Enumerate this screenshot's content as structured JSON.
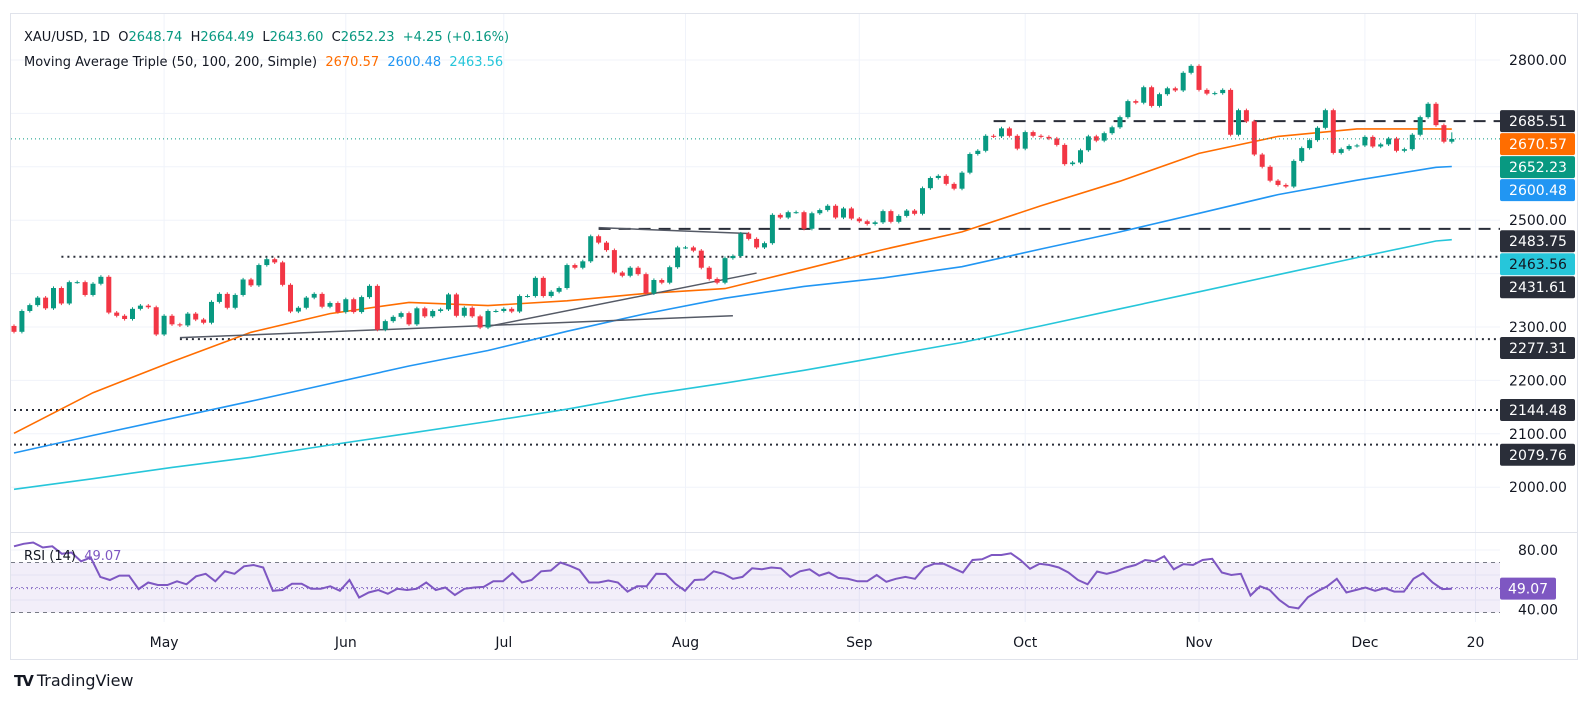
{
  "header": {
    "symbol": "XAU/USD, 1D",
    "o_label": "O",
    "o": "2648.74",
    "h_label": "H",
    "h": "2664.49",
    "l_label": "L",
    "l": "2643.60",
    "c_label": "C",
    "c": "2652.23",
    "change": "+4.25 (+0.16%)"
  },
  "ma_legend": {
    "title": "Moving Average Triple (50, 100, 200, Simple)",
    "ma50": "2670.57",
    "ma100": "2600.48",
    "ma200": "2463.56"
  },
  "rsi_legend": {
    "title": "RSI (14)",
    "value": "49.07"
  },
  "colors": {
    "up": "#089981",
    "down": "#f23645",
    "ma50": "#ff6d00",
    "ma100": "#2196f3",
    "ma200": "#26c6da",
    "rsi": "#7e57c2",
    "badge_dark": "#2a2e39"
  },
  "price_axis": {
    "ticks": [
      {
        "value": 2800,
        "label": "2800.00"
      },
      {
        "value": 2500,
        "label": "2500.00"
      },
      {
        "value": 2300,
        "label": "2300.00"
      },
      {
        "value": 2200,
        "label": "2200.00"
      },
      {
        "value": 2100,
        "label": "2100.00"
      },
      {
        "value": 2000,
        "label": "2000.00"
      }
    ],
    "badges": [
      {
        "value": 2685.51,
        "label": "2685.51",
        "bg": "#2a2e39",
        "fg": "#ffffff"
      },
      {
        "value": 2670.57,
        "label": "2670.57",
        "bg": "#ff6d00",
        "fg": "#ffffff"
      },
      {
        "value": 2652.23,
        "label": "2652.23",
        "bg": "#089981",
        "fg": "#ffffff"
      },
      {
        "value": 2600.48,
        "label": "2600.48",
        "bg": "#2196f3",
        "fg": "#ffffff"
      },
      {
        "value": 2483.75,
        "label": "2483.75",
        "bg": "#2a2e39",
        "fg": "#ffffff"
      },
      {
        "value": 2463.56,
        "label": "2463.56",
        "bg": "#26c6da",
        "fg": "#131722"
      },
      {
        "value": 2431.61,
        "label": "2431.61",
        "bg": "#2a2e39",
        "fg": "#ffffff"
      },
      {
        "value": 2277.31,
        "label": "2277.31",
        "bg": "#2a2e39",
        "fg": "#ffffff"
      },
      {
        "value": 2144.48,
        "label": "2144.48",
        "bg": "#2a2e39",
        "fg": "#ffffff"
      },
      {
        "value": 2079.76,
        "label": "2079.76",
        "bg": "#2a2e39",
        "fg": "#ffffff"
      }
    ]
  },
  "rsi_axis": {
    "ticks": [
      {
        "value": 80,
        "label": "80.00"
      },
      {
        "value": 40,
        "label": "40.00"
      }
    ],
    "badge": {
      "value": 49.07,
      "label": "49.07"
    }
  },
  "time_axis": [
    {
      "label": "May",
      "bar": 19
    },
    {
      "label": "Jun",
      "bar": 42
    },
    {
      "label": "Jul",
      "bar": 62
    },
    {
      "label": "Aug",
      "bar": 85
    },
    {
      "label": "Sep",
      "bar": 107
    },
    {
      "label": "Oct",
      "bar": 128
    },
    {
      "label": "Nov",
      "bar": 150
    },
    {
      "label": "Dec",
      "bar": 171
    },
    {
      "label": "20",
      "bar": 185
    }
  ],
  "logo": "TradingView",
  "chart_data": {
    "type": "candlestick",
    "scale": "linear",
    "ylim": [
      1930,
      2810
    ],
    "grid": true,
    "first_open": 2302,
    "last_high": 2664.49,
    "last_low": 2643.6,
    "closes": [
      2291,
      2330,
      2341,
      2355,
      2335,
      2373,
      2344,
      2384,
      2384,
      2360,
      2381,
      2394,
      2327,
      2321,
      2315,
      2334,
      2340,
      2337,
      2286,
      2321,
      2305,
      2303,
      2325,
      2314,
      2308,
      2347,
      2362,
      2336,
      2360,
      2389,
      2378,
      2416,
      2427,
      2421,
      2379,
      2329,
      2336,
      2355,
      2362,
      2338,
      2345,
      2328,
      2352,
      2328,
      2356,
      2377,
      2295,
      2311,
      2319,
      2326,
      2305,
      2335,
      2320,
      2330,
      2333,
      2361,
      2321,
      2336,
      2320,
      2299,
      2330,
      2330,
      2334,
      2329,
      2358,
      2358,
      2392,
      2358,
      2366,
      2373,
      2416,
      2411,
      2423,
      2470,
      2458,
      2444,
      2402,
      2396,
      2411,
      2399,
      2363,
      2388,
      2383,
      2412,
      2449,
      2449,
      2443,
      2411,
      2390,
      2383,
      2429,
      2433,
      2475,
      2465,
      2449,
      2457,
      2510,
      2505,
      2515,
      2515,
      2484,
      2513,
      2519,
      2527,
      2505,
      2522,
      2503,
      2498,
      2493,
      2496,
      2517,
      2497,
      2508,
      2518,
      2512,
      2560,
      2579,
      2583,
      2568,
      2559,
      2589,
      2624,
      2630,
      2658,
      2657,
      2672,
      2658,
      2634,
      2665,
      2658,
      2656,
      2653,
      2641,
      2605,
      2608,
      2631,
      2657,
      2649,
      2663,
      2674,
      2693,
      2723,
      2720,
      2749,
      2714,
      2736,
      2747,
      2743,
      2776,
      2789,
      2744,
      2737,
      2738,
      2744,
      2660,
      2706,
      2685,
      2623,
      2600,
      2574,
      2566,
      2563,
      2611,
      2635,
      2650,
      2673,
      2706,
      2626,
      2633,
      2639,
      2640,
      2656,
      2638,
      2642,
      2653,
      2630,
      2633,
      2660,
      2693,
      2718,
      2678,
      2647,
      2652.23
    ],
    "moving_averages": {
      "sample_bars": [
        0,
        10,
        20,
        30,
        40,
        50,
        60,
        70,
        80,
        90,
        100,
        110,
        120,
        130,
        140,
        150,
        160,
        170,
        180,
        182
      ],
      "ma50": [
        2101,
        2177,
        2235,
        2290,
        2325,
        2346,
        2340,
        2349,
        2363,
        2372,
        2408,
        2445,
        2478,
        2527,
        2573,
        2625,
        2657,
        2671,
        2671,
        2670.57
      ],
      "ma100": [
        2064,
        2097,
        2129,
        2161,
        2194,
        2227,
        2256,
        2292,
        2325,
        2354,
        2376,
        2392,
        2413,
        2446,
        2478,
        2513,
        2548,
        2575,
        2599,
        2600.48
      ],
      "ma200": [
        1996,
        2016,
        2037,
        2056,
        2079,
        2101,
        2123,
        2146,
        2173,
        2195,
        2219,
        2245,
        2271,
        2302,
        2334,
        2366,
        2398,
        2430,
        2461,
        2463.56
      ]
    },
    "levels": [
      {
        "price": 2685.51,
        "style": "dashed",
        "from_bar": 124
      },
      {
        "price": 2483.75,
        "style": "dashed",
        "from_bar": 74
      },
      {
        "price": 2431.61,
        "style": "dotted",
        "from_bar": 6
      },
      {
        "price": 2277.31,
        "style": "dotted",
        "from_bar": 21
      },
      {
        "price": 2144.48,
        "style": "dotted",
        "from_bar": 0
      },
      {
        "price": 2079.76,
        "style": "dotted",
        "from_bar": 0
      }
    ],
    "trendlines": [
      {
        "from": [
          21,
          2280
        ],
        "to": [
          91,
          2321
        ]
      },
      {
        "from": [
          60,
          2301
        ],
        "to": [
          94,
          2401
        ]
      },
      {
        "from": [
          74,
          2486
        ],
        "to": [
          93,
          2475
        ]
      }
    ],
    "rsi": {
      "period": 14,
      "upper": 70,
      "middle": 50,
      "lower": 30,
      "values": [
        83,
        85,
        86,
        82,
        83,
        77,
        78,
        71,
        74,
        58.5,
        56,
        59.5,
        59.5,
        48.7,
        54,
        52,
        52,
        55,
        52.6,
        59,
        61,
        55,
        63,
        61,
        67,
        68,
        66,
        47.4,
        48,
        53,
        53,
        49,
        49,
        51,
        47.4,
        56,
        42,
        46,
        48,
        45,
        49,
        48,
        49,
        54,
        48,
        50,
        44,
        49,
        50,
        50.5,
        55,
        55,
        61.5,
        54,
        56,
        63,
        63.6,
        70,
        67.4,
        64,
        54,
        54,
        55.6,
        54,
        46.7,
        51,
        51,
        61,
        60.8,
        53,
        47.4,
        56,
        56.4,
        63,
        61,
        57,
        58.5,
        65.4,
        64.6,
        66,
        65.4,
        58.5,
        63,
        64.6,
        59.5,
        62,
        57.7,
        57,
        55,
        55,
        60,
        54.6,
        57,
        58.5,
        57,
        66,
        69,
        69,
        65.4,
        62,
        72,
        72.6,
        76,
        76,
        77.4,
        72,
        65,
        69,
        68,
        66,
        62,
        56,
        52.6,
        62.8,
        61,
        63,
        66,
        68,
        72,
        71,
        75,
        64.6,
        68.7,
        68,
        72,
        73,
        62,
        60,
        61,
        43.6,
        51,
        48,
        40,
        34.6,
        33.3,
        42.3,
        47,
        51,
        57,
        46,
        48,
        50,
        47.4,
        49.5,
        46.7,
        46.7,
        57,
        61.5,
        54,
        48.7,
        49.07
      ]
    }
  }
}
